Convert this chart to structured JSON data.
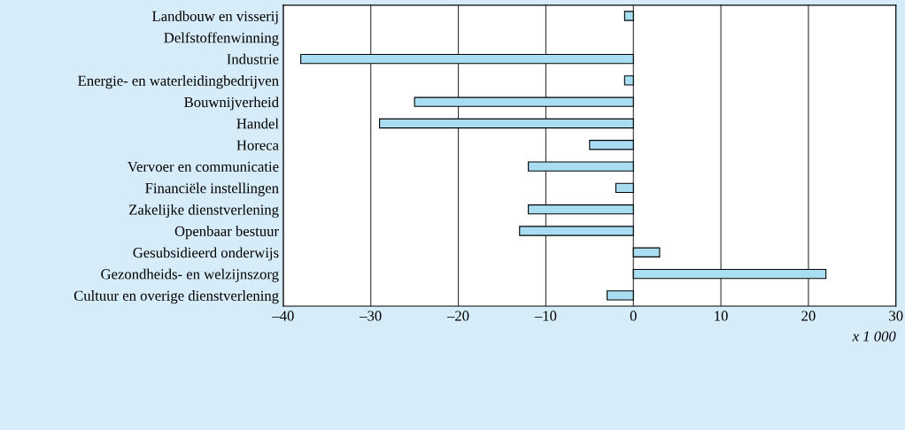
{
  "chart_data": {
    "type": "bar",
    "orientation": "horizontal",
    "categories": [
      "Landbouw en visserij",
      "Delfstoffenwinning",
      "Industrie",
      "Energie- en waterleidingbedrijven",
      "Bouwnijverheid",
      "Handel",
      "Horeca",
      "Vervoer en communicatie",
      "Financiële instellingen",
      "Zakelijke dienstverlening",
      "Openbaar bestuur",
      "Gesubsidieerd onderwijs",
      "Gezondheids- en welzijnszorg",
      "Cultuur en overige dienstverlening"
    ],
    "values": [
      -1,
      null,
      -38,
      -1,
      -25,
      -29,
      -5,
      -12,
      -2,
      -12,
      -13,
      3,
      22,
      -3
    ],
    "color": "#a8ddf2",
    "xlim": [
      -40,
      30
    ],
    "xticks": [
      {
        "value": -40,
        "label": "–40"
      },
      {
        "value": -30,
        "label": "–30"
      },
      {
        "value": -20,
        "label": "–20"
      },
      {
        "value": -10,
        "label": "–10"
      },
      0,
      10,
      20,
      30
    ],
    "grid": "x",
    "annotations": [
      "x 1 000"
    ]
  }
}
